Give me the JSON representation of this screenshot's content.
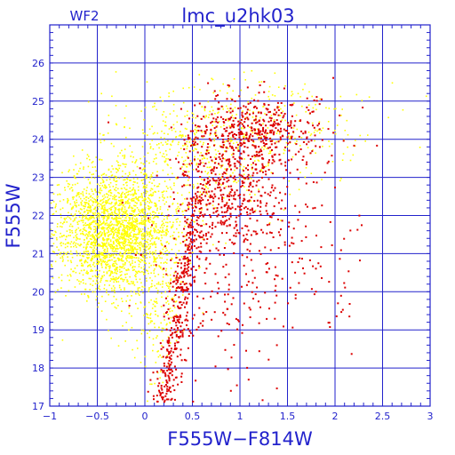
{
  "chart_data": {
    "type": "scatter",
    "title": "lmc_u2hk03",
    "subtitle": "WF2",
    "xlabel": "F555W−F814W",
    "ylabel": "F555W",
    "xlim": [
      -1,
      3
    ],
    "ylim": [
      27,
      17
    ],
    "y_inverted": true,
    "grid": true,
    "x_ticks": [
      -1,
      -0.5,
      0,
      0.5,
      1,
      1.5,
      2,
      2.5,
      3
    ],
    "x_tick_labels": [
      "−1",
      "−0.5",
      "0",
      "0.5",
      "1",
      "1.5",
      "2",
      "2.5",
      "3"
    ],
    "y_ticks": [
      17,
      18,
      19,
      20,
      21,
      22,
      23,
      24,
      25,
      26
    ],
    "y_tick_labels": [
      "17",
      "18",
      "19",
      "20",
      "21",
      "22",
      "23",
      "24",
      "25",
      "26"
    ],
    "colors": {
      "axis": "#2222cc",
      "frame": "#2222cc",
      "grid": "#2222cc"
    },
    "series": [
      {
        "color": "#ffff00",
        "clusters": [
          {
            "x_mean": -0.3,
            "x_sd": 0.32,
            "y_mean": 21.6,
            "y_sd": 0.85,
            "count": 2400
          },
          {
            "x_mean": 0.6,
            "x_sd": 0.45,
            "y_mean": 23.8,
            "y_sd": 0.8,
            "count": 450
          },
          {
            "x_mean": 1.4,
            "x_sd": 0.5,
            "y_mean": 24.3,
            "y_sd": 0.6,
            "count": 200
          },
          {
            "x_mean": 0.15,
            "x_sd": 0.12,
            "y_mean": 19.5,
            "y_sd": 1.0,
            "count": 150
          }
        ]
      },
      {
        "color": "#dd0000",
        "clusters": [
          {
            "type": "sequence",
            "x_start": 0.2,
            "y_start": 17.1,
            "x_end": 0.55,
            "y_end": 22.5,
            "x_sd": 0.06,
            "count": 380
          },
          {
            "x_mean": 0.9,
            "x_sd": 0.3,
            "y_mean": 22.8,
            "y_sd": 0.9,
            "count": 450
          },
          {
            "x_mean": 1.2,
            "x_sd": 0.35,
            "y_mean": 24.2,
            "y_sd": 0.5,
            "count": 400
          },
          {
            "x_mean": 1.3,
            "x_sd": 0.55,
            "y_mean": 21.0,
            "y_sd": 1.5,
            "count": 200
          },
          {
            "x_mean": 0.8,
            "x_sd": 0.35,
            "y_mean": 20.0,
            "y_sd": 1.2,
            "count": 100
          }
        ]
      }
    ]
  }
}
